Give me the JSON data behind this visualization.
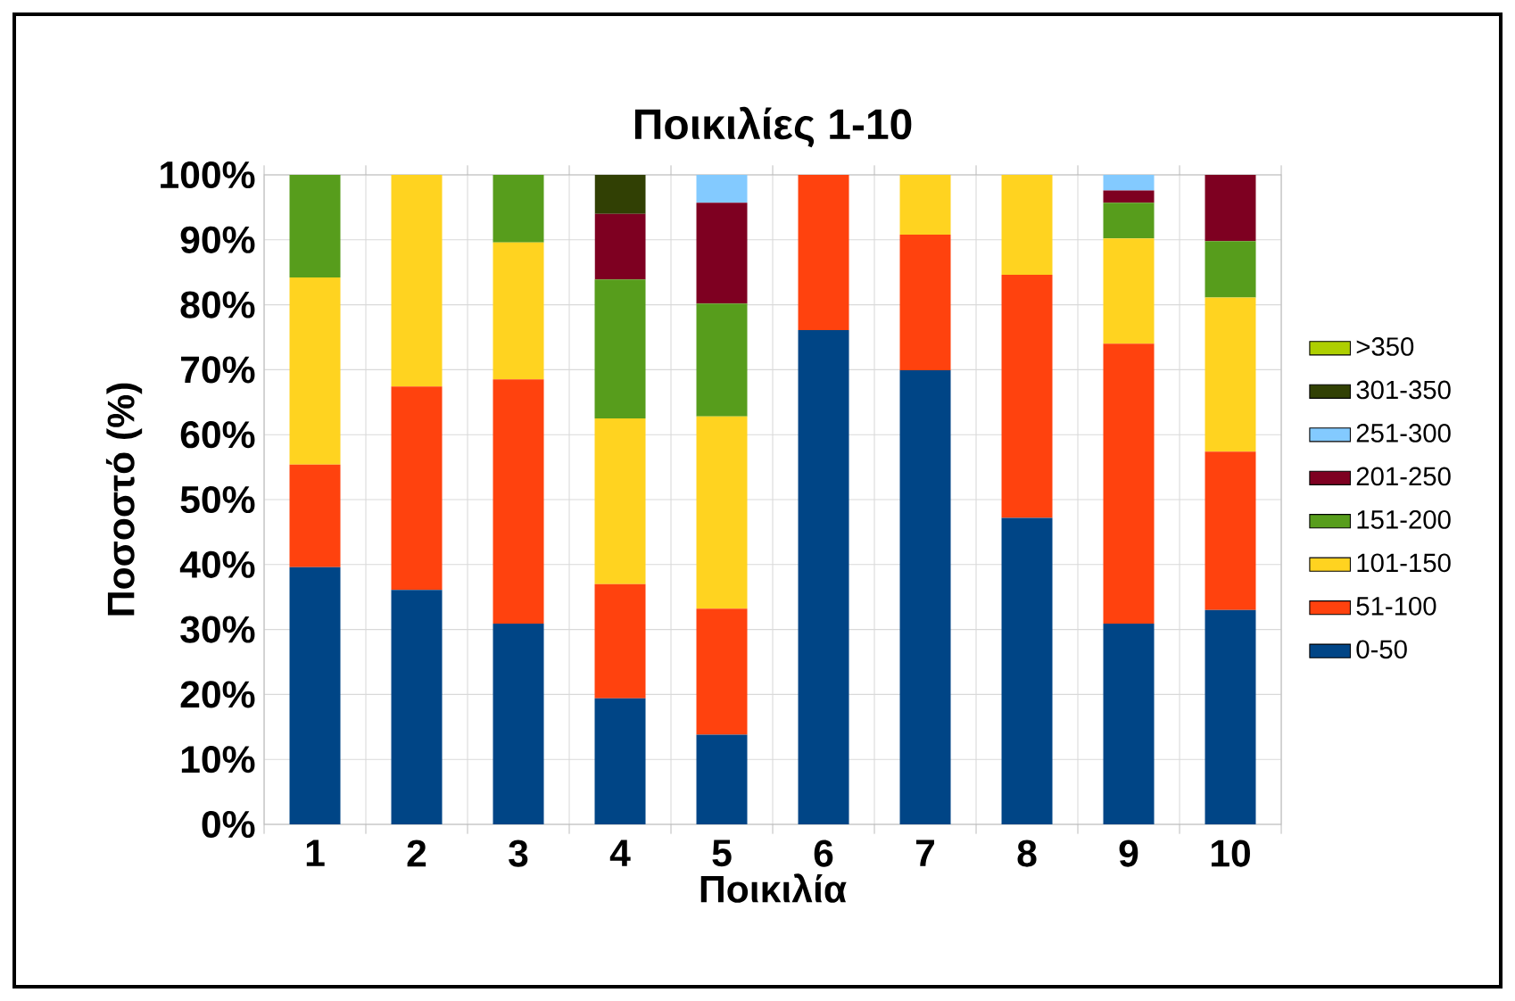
{
  "chart_data": {
    "type": "bar",
    "stacked": true,
    "title": "Ποικιλίες 1-10",
    "xlabel": "Ποικιλία",
    "ylabel": "Ποσοστό (%)",
    "categories": [
      "1",
      "2",
      "3",
      "4",
      "5",
      "6",
      "7",
      "8",
      "9",
      "10"
    ],
    "series": [
      {
        "name": "0-50",
        "color": "#004586",
        "values": [
          39.6,
          36.1,
          30.9,
          19.4,
          13.8,
          76.1,
          69.9,
          47.2,
          30.9,
          33.0
        ]
      },
      {
        "name": "51-100",
        "color": "#ff420e",
        "values": [
          15.8,
          31.3,
          37.6,
          17.6,
          19.4,
          23.9,
          20.9,
          37.4,
          43.1,
          24.4
        ]
      },
      {
        "name": "101-150",
        "color": "#ffd320",
        "values": [
          28.8,
          32.6,
          21.1,
          25.5,
          29.6,
          0,
          9.2,
          15.4,
          16.2,
          23.7
        ]
      },
      {
        "name": "151-200",
        "color": "#579d1c",
        "values": [
          15.8,
          0,
          10.4,
          21.4,
          17.4,
          0,
          0,
          0,
          5.5,
          8.7
        ]
      },
      {
        "name": "201-250",
        "color": "#7e0021",
        "values": [
          0,
          0,
          0,
          10.1,
          15.5,
          0,
          0,
          0,
          1.9,
          10.2
        ]
      },
      {
        "name": "251-300",
        "color": "#83caff",
        "values": [
          0,
          0,
          0,
          0,
          4.3,
          0,
          0,
          0,
          2.4,
          0
        ]
      },
      {
        "name": "301-350",
        "color": "#314004",
        "values": [
          0,
          0,
          0,
          6.0,
          0,
          0,
          0,
          0,
          0,
          0
        ]
      },
      {
        "name": ">350",
        "color": "#aecf00",
        "values": [
          0,
          0,
          0,
          0,
          0,
          0,
          0,
          0,
          0,
          0
        ]
      }
    ],
    "ylim": [
      0,
      100
    ],
    "yticks": [
      {
        "value": 0,
        "label": "0%"
      },
      {
        "value": 10,
        "label": "10%"
      },
      {
        "value": 20,
        "label": "20%"
      },
      {
        "value": 30,
        "label": "30%"
      },
      {
        "value": 40,
        "label": "40%"
      },
      {
        "value": 50,
        "label": "50%"
      },
      {
        "value": 60,
        "label": "60%"
      },
      {
        "value": 70,
        "label": "70%"
      },
      {
        "value": 80,
        "label": "80%"
      },
      {
        "value": 90,
        "label": "90%"
      },
      {
        "value": 100,
        "label": "100%"
      }
    ],
    "grid": true,
    "legend": "right"
  }
}
